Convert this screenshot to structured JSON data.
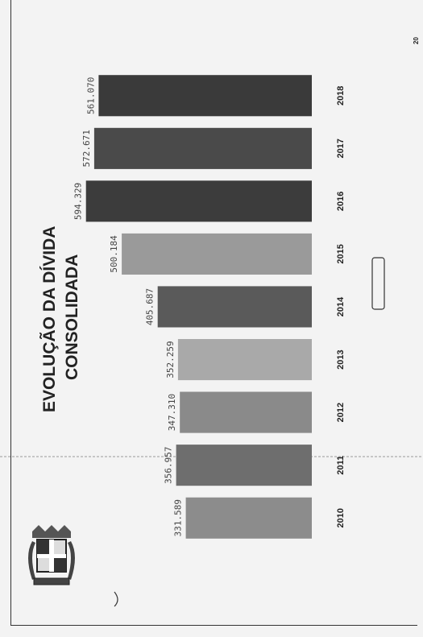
{
  "chart_data": {
    "type": "bar",
    "title_lines": [
      "EVOLUÇÃO DA DÍVIDA",
      "CONSOLIDADA"
    ],
    "categories": [
      "2010",
      "2011",
      "2012",
      "2013",
      "2014",
      "2015",
      "2016",
      "2017",
      "2018"
    ],
    "value_labels": [
      "331.589",
      "356.957",
      "347.310",
      "352.259",
      "405.687",
      "500.184",
      "594.329",
      "572.671",
      "561.070"
    ],
    "values": [
      331589,
      356957,
      347310,
      352259,
      405687,
      500184,
      594329,
      572671,
      561070
    ],
    "bar_colors": [
      "#8c8c8c",
      "#6e6e6e",
      "#8a8a8a",
      "#a9a9a9",
      "#5a5a5a",
      "#9a9a9a",
      "#3c3c3c",
      "#4a4a4a",
      "#3a3a3a"
    ],
    "orientation": "rotated 90 degrees counter-clockwise",
    "grid": false
  },
  "page_number": "20",
  "colors": {
    "background": "#f3f3f3",
    "ink": "#222222",
    "frame": "#333333"
  },
  "icons": {
    "emblem": "municipal-coat-of-arms-icon"
  }
}
